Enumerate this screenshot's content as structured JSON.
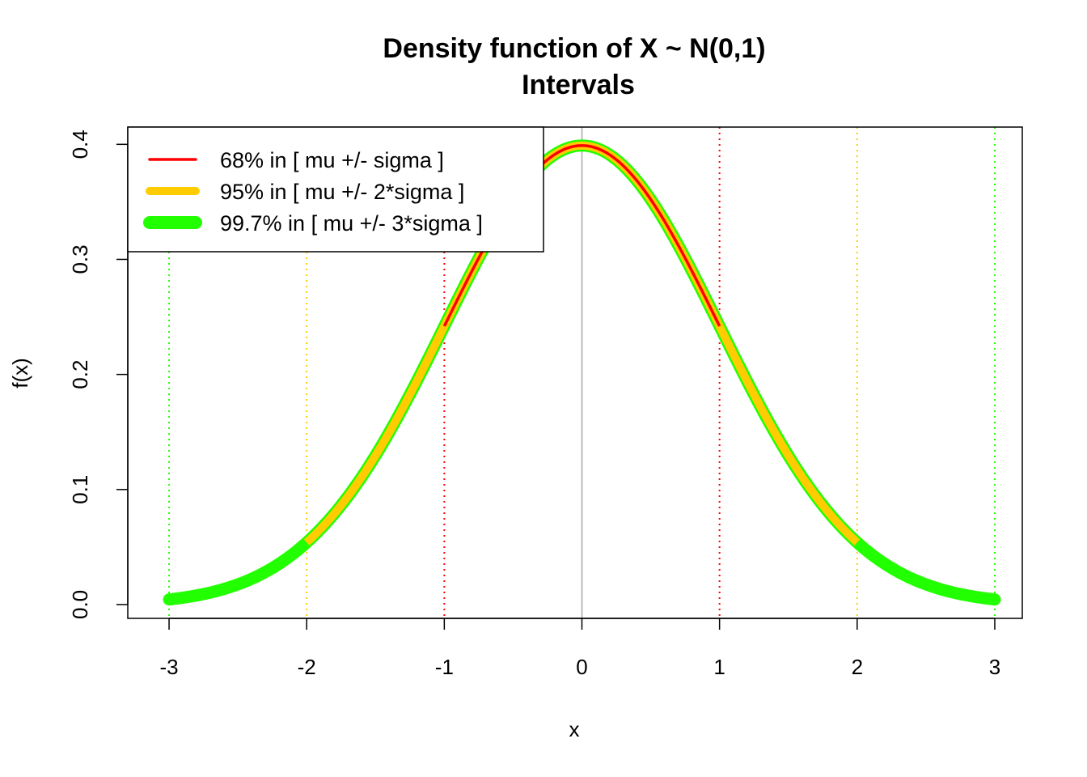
{
  "chart_data": {
    "type": "line",
    "title": "Density function of X ~ N(0,1)",
    "subtitle": "Intervals",
    "xlabel": "x",
    "ylabel": "f(x)",
    "xlim": [
      -3.3,
      3.2
    ],
    "ylim": [
      -0.012,
      0.415
    ],
    "x_ticks": [
      "-3",
      "-2",
      "-1",
      "0",
      "1",
      "2",
      "3"
    ],
    "y_ticks": [
      "0.0",
      "0.1",
      "0.2",
      "0.3",
      "0.4"
    ],
    "grid": false,
    "legend_position": "top-left",
    "function": "standard normal density",
    "series": [
      {
        "name": "99.7% in [ mu +/- 3*sigma ]",
        "x_range": [
          -3,
          3
        ],
        "color": "#22ff00",
        "line": "thick"
      },
      {
        "name": "95% in [ mu +/- 2*sigma ]",
        "x_range": [
          -2,
          2
        ],
        "color": "#ffcc00",
        "line": "medium"
      },
      {
        "name": "68% in [ mu +/- sigma ]",
        "x_range": [
          -1,
          1
        ],
        "color": "#ff0000",
        "line": "thin"
      }
    ],
    "reference_lines": [
      {
        "x": -3,
        "color": "#22ff00",
        "style": "dotted"
      },
      {
        "x": -2,
        "color": "#ffcc00",
        "style": "dotted"
      },
      {
        "x": -1,
        "color": "#ff0000",
        "style": "dotted"
      },
      {
        "x": 0,
        "color": "#bbbbbb",
        "style": "solid"
      },
      {
        "x": 1,
        "color": "#ff0000",
        "style": "dotted"
      },
      {
        "x": 2,
        "color": "#ffcc00",
        "style": "dotted"
      },
      {
        "x": 3,
        "color": "#22ff00",
        "style": "dotted"
      }
    ],
    "legend": [
      {
        "label": "68% in [ mu +/- sigma ]",
        "color": "#ff0000"
      },
      {
        "label": "95% in [ mu +/- 2*sigma ]",
        "color": "#ffcc00"
      },
      {
        "label": "99.7% in [ mu +/- 3*sigma ]",
        "color": "#22ff00"
      }
    ]
  }
}
